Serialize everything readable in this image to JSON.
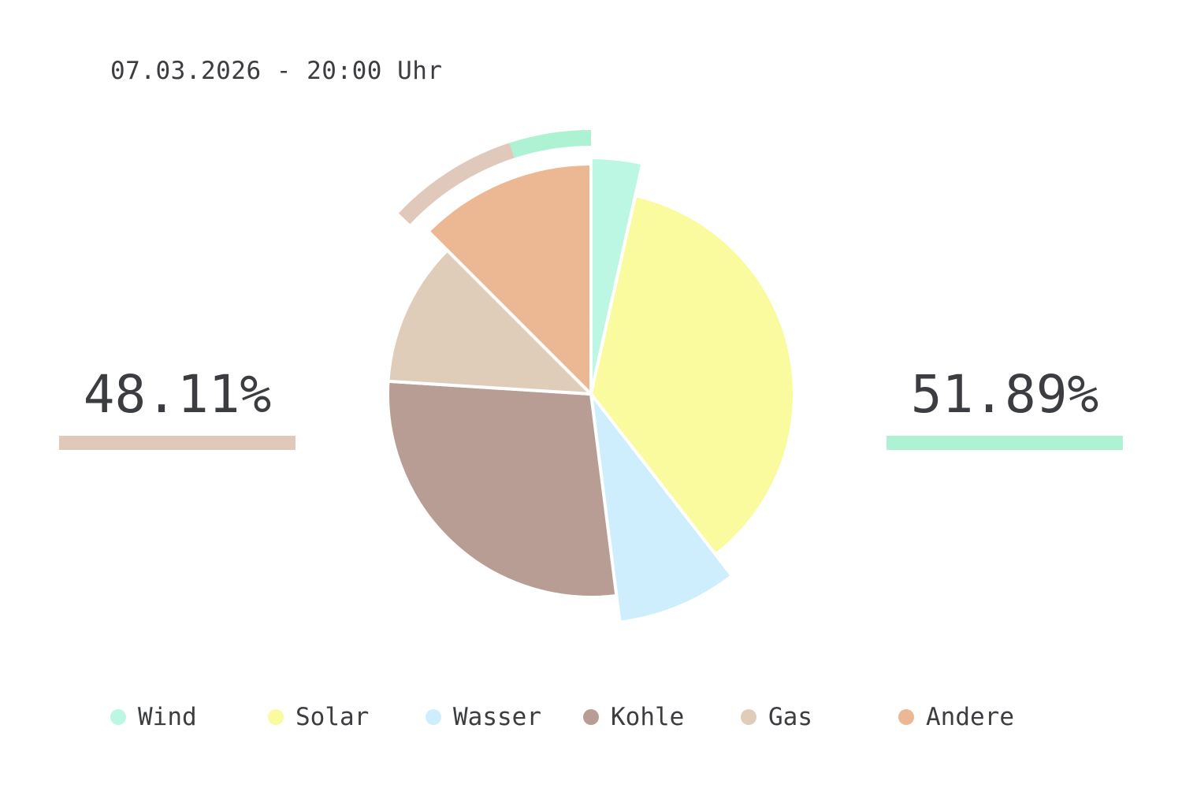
{
  "header": {
    "timestamp": "07.03.2026 - 20:00 Uhr"
  },
  "summary": {
    "left_percent": "48.11%",
    "right_percent": "51.89%",
    "left_color": "#e0c9bb",
    "right_color": "#aef2d4"
  },
  "chart_data": {
    "type": "pie",
    "start_angle_deg": 0,
    "direction": "clockwise",
    "slices": [
      {
        "label": "Wind",
        "value": 3.5,
        "color": "#bbf7e2",
        "exploded": true
      },
      {
        "label": "Solar",
        "value": 36.0,
        "color": "#fafb9e",
        "exploded": false
      },
      {
        "label": "Wasser",
        "value": 8.5,
        "color": "#cfeefd",
        "exploded": true
      },
      {
        "label": "Kohle",
        "value": 28.0,
        "color": "#b89d94",
        "exploded": false
      },
      {
        "label": "Gas",
        "value": 11.5,
        "color": "#dfcdb9",
        "exploded": false
      },
      {
        "label": "Andere",
        "value": 12.5,
        "color": "#ebb893",
        "exploded": true
      }
    ],
    "outer_arcs": [
      {
        "name": "renewable-arc",
        "start_value": 95.0,
        "end_value": 100.0,
        "color": "#aef2d4"
      },
      {
        "name": "fossil-arc",
        "start_value": 87.0,
        "end_value": 95.0,
        "color": "#e0c9bb"
      }
    ],
    "legend": {
      "placement": "bottom",
      "items": [
        "Wind",
        "Solar",
        "Wasser",
        "Kohle",
        "Gas",
        "Andere"
      ]
    }
  }
}
